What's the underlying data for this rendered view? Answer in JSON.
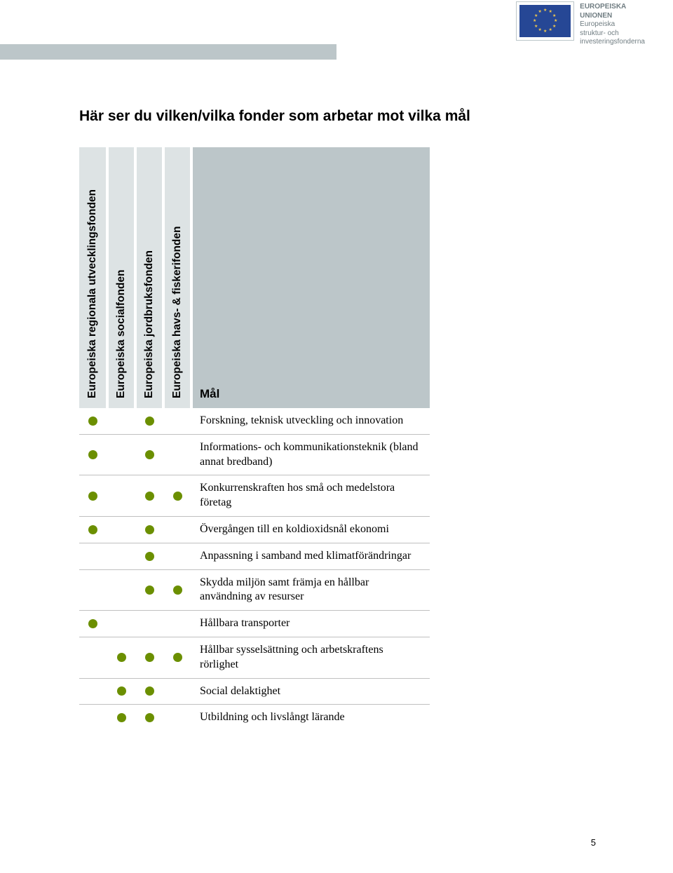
{
  "eu_block": {
    "line1": "EUROPEISKA",
    "line2": "UNIONEN",
    "line3": "Europeiska",
    "line4": "struktur- och",
    "line5": "investeringsfonderna"
  },
  "title": "Här ser du vilken/vilka fonder som arbetar mot vilka mål",
  "columns": {
    "c1": "Europeiska regionala utvecklingsfonden",
    "c2": "Europeiska socialfonden",
    "c3": "Europeiska jordbruksfonden",
    "c4": "Europeiska havs- & fiskerifonden",
    "c5": "Mål"
  },
  "rows": [
    {
      "dots": [
        true,
        false,
        true,
        false
      ],
      "label": "Forskning, teknisk utveckling och innovation"
    },
    {
      "dots": [
        true,
        false,
        true,
        false
      ],
      "label": "Informations- och kommunikationsteknik (bland annat bredband)"
    },
    {
      "dots": [
        true,
        false,
        true,
        true
      ],
      "label": "Konkurrenskraften hos små och medelstora företag"
    },
    {
      "dots": [
        true,
        false,
        true,
        false
      ],
      "label": "Övergången till en koldioxidsnål ekonomi"
    },
    {
      "dots": [
        false,
        false,
        true,
        false
      ],
      "label": "Anpassning i samband med klimatförändringar"
    },
    {
      "dots": [
        false,
        false,
        true,
        true
      ],
      "label": "Skydda miljön samt främja en hållbar användning av resurser"
    },
    {
      "dots": [
        true,
        false,
        false,
        false
      ],
      "label": "Hållbara transporter"
    },
    {
      "dots": [
        false,
        true,
        true,
        true
      ],
      "label": "Hållbar sysselsättning och arbetskraftens rörlighet"
    },
    {
      "dots": [
        false,
        true,
        true,
        false
      ],
      "label": "Social delaktighet"
    },
    {
      "dots": [
        false,
        true,
        true,
        false
      ],
      "label": "Utbildning och livslångt lärande"
    }
  ],
  "page_number": "5",
  "colors": {
    "dot": "#6b8f00",
    "header_light": "#dde3e4",
    "header_dark": "#bcc6c9"
  }
}
